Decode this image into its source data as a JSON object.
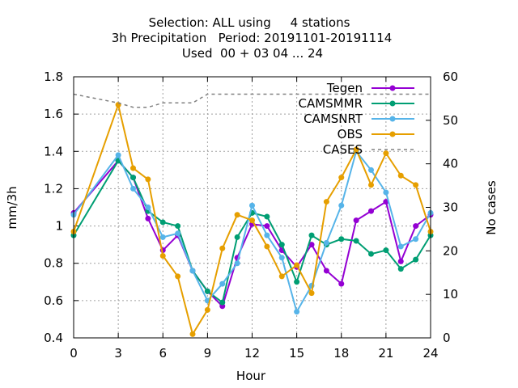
{
  "chart_data": {
    "type": "line",
    "title_lines": [
      "Selection: ALL using     4 stations",
      "3h Precipitation   Period: 20191101-20191114",
      "Used  00 + 03 04 ... 24"
    ],
    "xlabel": "Hour",
    "ylabel": "mm/3h",
    "y2label": "No cases",
    "xlim": [
      0,
      24
    ],
    "ylim": [
      0.4,
      1.8
    ],
    "y2lim": [
      0,
      60
    ],
    "xticks": [
      0,
      3,
      6,
      9,
      12,
      15,
      18,
      21,
      24
    ],
    "yticks": [
      0.4,
      0.6,
      0.8,
      1,
      1.2,
      1.4,
      1.6,
      1.8
    ],
    "y2ticks": [
      0,
      10,
      20,
      30,
      40,
      50,
      60
    ],
    "grid": true,
    "legend_position": "top-right",
    "x": [
      0,
      3,
      4,
      5,
      6,
      7,
      8,
      9,
      10,
      11,
      12,
      13,
      14,
      15,
      16,
      17,
      18,
      19,
      20,
      21,
      22,
      23,
      24
    ],
    "series": [
      {
        "name": "Tegen",
        "color": "#9400d3",
        "axis": "y1",
        "marker": true,
        "values": [
          1.07,
          1.35,
          1.26,
          1.04,
          0.87,
          0.95,
          0.76,
          0.65,
          0.57,
          0.83,
          1.01,
          1.0,
          0.87,
          0.78,
          0.9,
          0.76,
          0.69,
          1.03,
          1.08,
          1.13,
          0.81,
          1.0,
          1.06
        ]
      },
      {
        "name": "CAMSMMR",
        "color": "#009e73",
        "axis": "y1",
        "marker": true,
        "values": [
          0.95,
          1.35,
          1.26,
          1.08,
          1.02,
          1.0,
          0.76,
          0.65,
          0.59,
          0.94,
          1.07,
          1.05,
          0.9,
          0.7,
          0.95,
          0.9,
          0.93,
          0.92,
          0.85,
          0.87,
          0.77,
          0.82,
          0.95
        ]
      },
      {
        "name": "CAMSNRT",
        "color": "#56b4e9",
        "axis": "y1",
        "marker": true,
        "values": [
          1.06,
          1.38,
          1.2,
          1.1,
          0.94,
          0.96,
          0.76,
          0.6,
          0.69,
          0.8,
          1.11,
          0.95,
          0.83,
          0.54,
          0.68,
          0.91,
          1.11,
          1.4,
          1.3,
          1.18,
          0.89,
          0.93,
          1.07
        ]
      },
      {
        "name": "OBS",
        "color": "#e69f00",
        "axis": "y1",
        "marker": true,
        "values": [
          0.97,
          1.65,
          1.31,
          1.25,
          0.84,
          0.73,
          0.42,
          0.55,
          0.88,
          1.06,
          1.03,
          0.89,
          0.73,
          0.79,
          0.64,
          1.13,
          1.26,
          1.41,
          1.22,
          1.39,
          1.27,
          1.22,
          0.97
        ]
      },
      {
        "name": "CASES",
        "color": "#808080",
        "axis": "y2",
        "marker": false,
        "dashed": true,
        "values": [
          56,
          54,
          53,
          53,
          54,
          54,
          54,
          56,
          56,
          56,
          56,
          56,
          56,
          56,
          56,
          56,
          56,
          56,
          56,
          56,
          56,
          56,
          56
        ]
      }
    ]
  }
}
